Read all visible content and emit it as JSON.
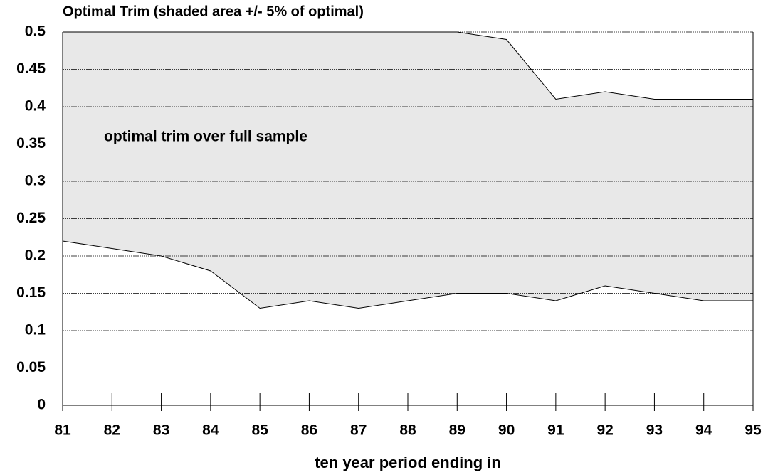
{
  "chart_data": {
    "type": "band",
    "title": "Optimal Trim (shaded area +/-  5% of optimal)",
    "x_label": "ten year period ending in",
    "annotation": "optimal trim over full sample",
    "categories": [
      "81",
      "82",
      "83",
      "84",
      "85",
      "86",
      "87",
      "88",
      "89",
      "90",
      "91",
      "92",
      "93",
      "94",
      "95"
    ],
    "series": [
      {
        "color": "#000000",
        "values": [
          0.5,
          0.5,
          0.5,
          0.5,
          0.5,
          0.5,
          0.5,
          0.5,
          0.5,
          0.49,
          0.41,
          0.42,
          0.41,
          0.41,
          0.41
        ]
      },
      {
        "color": "#000000",
        "values": [
          0.22,
          0.21,
          0.2,
          0.18,
          0.13,
          0.14,
          0.13,
          0.14,
          0.15,
          0.15,
          0.14,
          0.16,
          0.15,
          0.14,
          0.14
        ]
      }
    ],
    "fill_color": "#e8e8e8",
    "ylim": [
      0,
      0.5
    ],
    "yticks": [
      0,
      0.05,
      0.1,
      0.15,
      0.2,
      0.25,
      0.3,
      0.35,
      0.4,
      0.45,
      0.5
    ],
    "grid": true
  }
}
